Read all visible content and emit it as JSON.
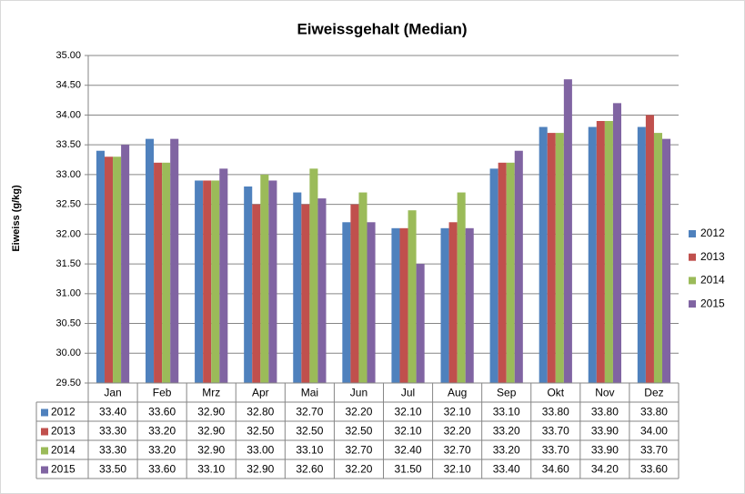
{
  "chart_data": {
    "type": "bar",
    "title": "Eiweissgehalt  (Median)",
    "y_label": "Eiweiss (g/kg)",
    "categories": [
      "Jan",
      "Feb",
      "Mrz",
      "Apr",
      "Mai",
      "Jun",
      "Jul",
      "Aug",
      "Sep",
      "Okt",
      "Nov",
      "Dez"
    ],
    "series": [
      {
        "name": "2012",
        "color": "#4f81bd",
        "values": [
          33.4,
          33.6,
          32.9,
          32.8,
          32.7,
          32.2,
          32.1,
          32.1,
          33.1,
          33.8,
          33.8,
          33.8
        ],
        "value_labels": [
          "33.40",
          "33.60",
          "32.90",
          "32.80",
          "32.70",
          "32.20",
          "32.10",
          "32.10",
          "33.10",
          "33.80",
          "33.80",
          "33.80"
        ]
      },
      {
        "name": "2013",
        "color": "#c0504d",
        "values": [
          33.3,
          33.2,
          32.9,
          32.5,
          32.5,
          32.5,
          32.1,
          32.2,
          33.2,
          33.7,
          33.9,
          34.0
        ],
        "value_labels": [
          "33.30",
          "33.20",
          "32.90",
          "32.50",
          "32.50",
          "32.50",
          "32.10",
          "32.20",
          "33.20",
          "33.70",
          "33.90",
          "34.00"
        ]
      },
      {
        "name": "2014",
        "color": "#9bbb59",
        "values": [
          33.3,
          33.2,
          32.9,
          33.0,
          33.1,
          32.7,
          32.4,
          32.7,
          33.2,
          33.7,
          33.9,
          33.7
        ],
        "value_labels": [
          "33.30",
          "33.20",
          "32.90",
          "33.00",
          "33.10",
          "32.70",
          "32.40",
          "32.70",
          "33.20",
          "33.70",
          "33.90",
          "33.70"
        ]
      },
      {
        "name": "2015",
        "color": "#8064a2",
        "values": [
          33.5,
          33.6,
          33.1,
          32.9,
          32.6,
          32.2,
          31.5,
          32.1,
          33.4,
          34.6,
          34.2,
          33.6
        ],
        "value_labels": [
          "33.50",
          "33.60",
          "33.10",
          "32.90",
          "32.60",
          "32.20",
          "31.50",
          "32.10",
          "33.40",
          "34.60",
          "34.20",
          "33.60"
        ]
      }
    ],
    "ylim": [
      29.5,
      35
    ],
    "yticks": [
      {
        "value": 29.5,
        "label": "29.50"
      },
      {
        "value": 30,
        "label": "30.00"
      },
      {
        "value": 30.5,
        "label": "30.50"
      },
      {
        "value": 31,
        "label": "31.00"
      },
      {
        "value": 31.5,
        "label": "31.50"
      },
      {
        "value": 32,
        "label": "32.00"
      },
      {
        "value": 32.5,
        "label": "32.50"
      },
      {
        "value": 33,
        "label": "33.00"
      },
      {
        "value": 33.5,
        "label": "33.50"
      },
      {
        "value": 34,
        "label": "34.00"
      },
      {
        "value": 34.5,
        "label": "34.50"
      },
      {
        "value": 35,
        "label": "35.00"
      }
    ],
    "grid": true,
    "legend": "right",
    "data_table": true
  }
}
